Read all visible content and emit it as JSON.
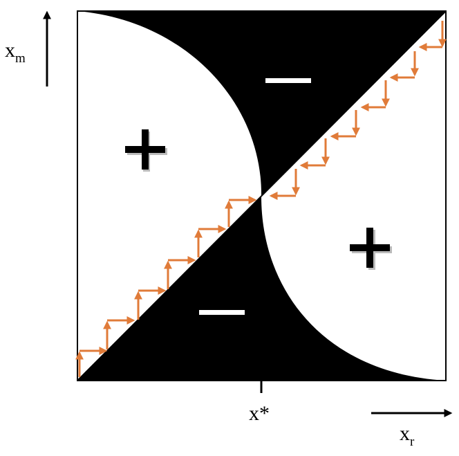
{
  "labels": {
    "y_axis": {
      "main": "x",
      "sub": "m"
    },
    "x_axis": {
      "main": "x",
      "sub": "r"
    },
    "tick": "x*"
  },
  "regions": [
    {
      "sign": "+",
      "location": "upper-left"
    },
    {
      "sign": "−",
      "location": "upper-middle"
    },
    {
      "sign": "−",
      "location": "lower-middle"
    },
    {
      "sign": "+",
      "location": "lower-right"
    }
  ],
  "colors": {
    "region_fill": "#000000",
    "background": "#ffffff",
    "arrows": "#E07B39"
  }
}
